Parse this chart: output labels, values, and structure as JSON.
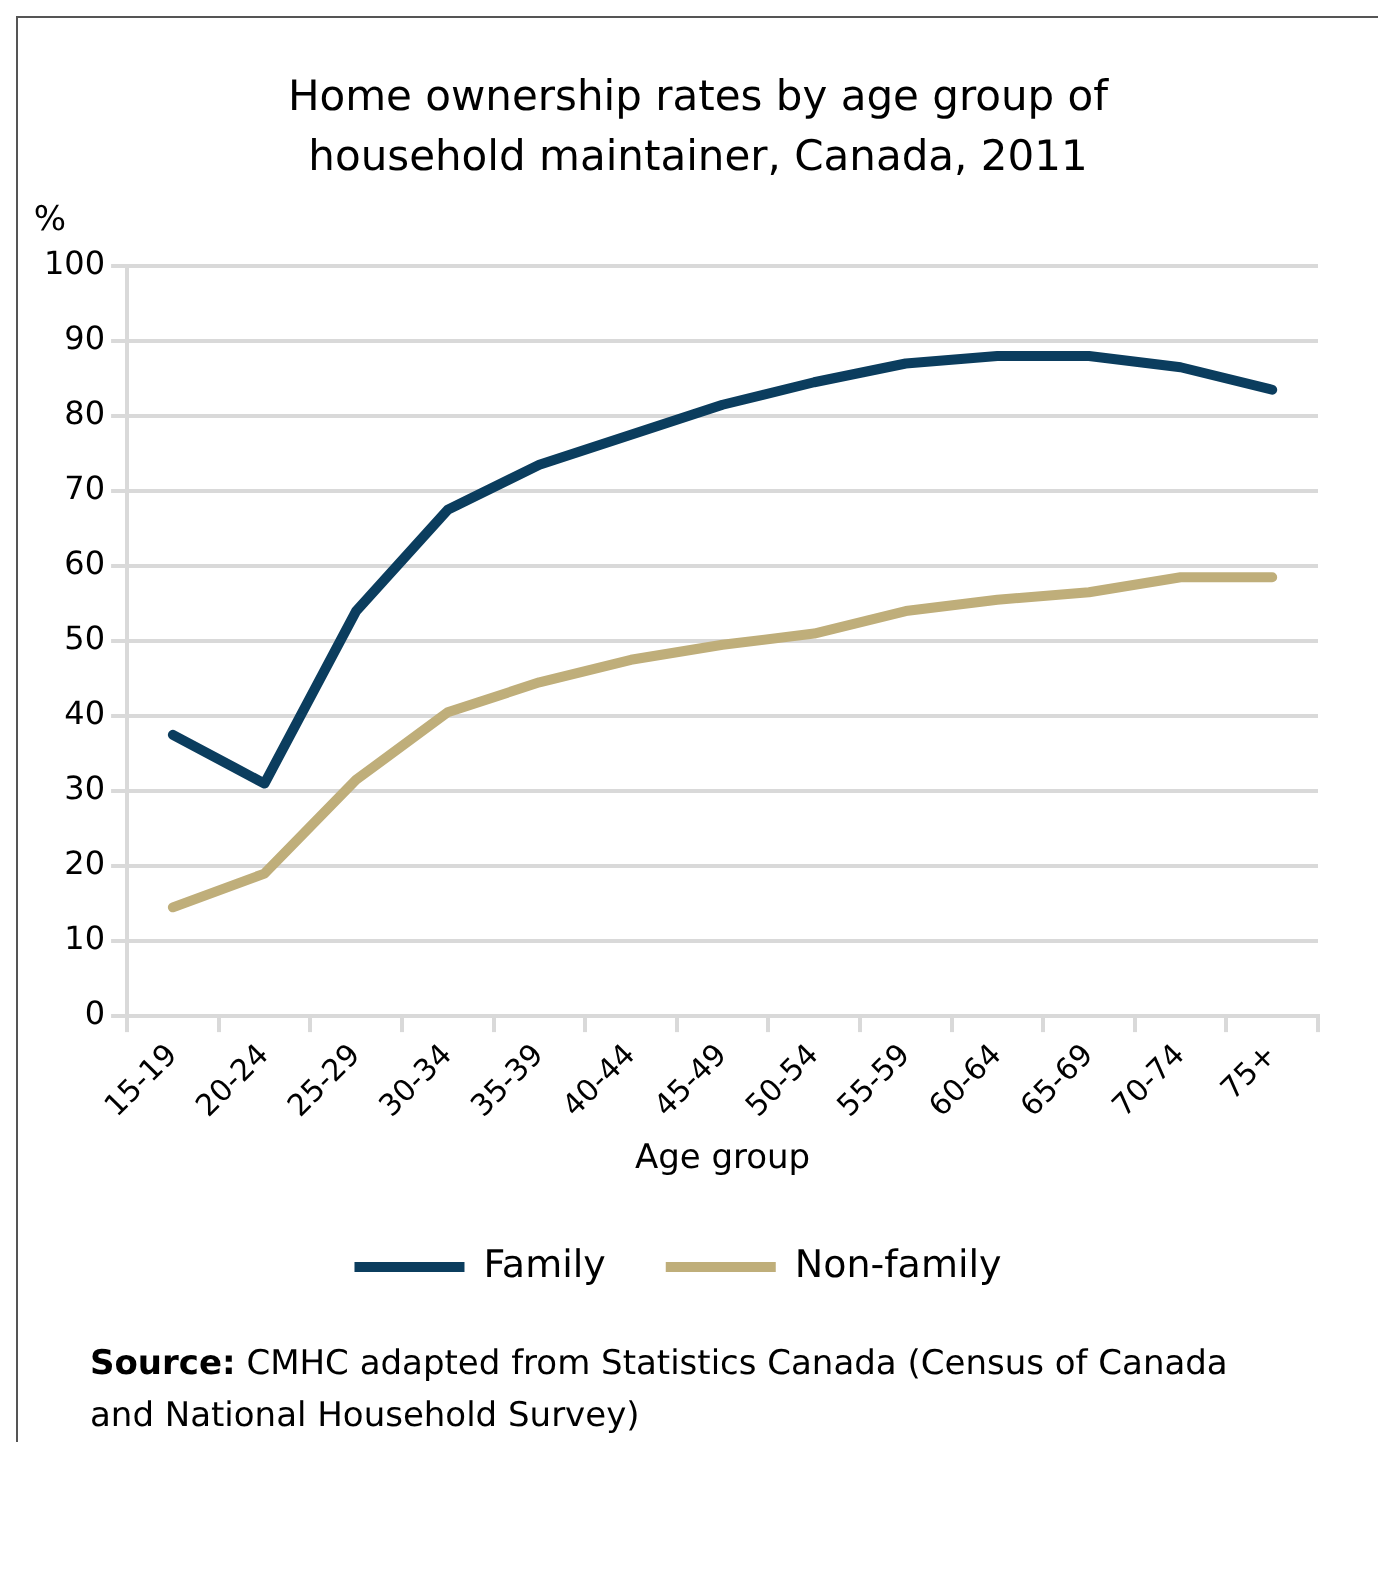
{
  "chart_data": {
    "type": "line",
    "title": "Home ownership rates by age group of household maintainer, Canada, 2011",
    "xlabel": "Age group",
    "ylabel": "%",
    "categories": [
      "15-19",
      "20-24",
      "25-29",
      "30-34",
      "35-39",
      "40-44",
      "45-49",
      "50-54",
      "55-59",
      "60-64",
      "65-69",
      "70-74",
      "75+"
    ],
    "series": [
      {
        "name": "Family",
        "color": "#0b3d5e",
        "values": [
          37.5,
          31,
          54,
          67.5,
          73.5,
          77.5,
          81.5,
          84.5,
          87,
          88,
          88,
          86.5,
          83.5
        ]
      },
      {
        "name": "Non-family",
        "color": "#bfae7a",
        "values": [
          14.5,
          19,
          31.5,
          40.5,
          44.5,
          47.5,
          49.5,
          51,
          54,
          55.5,
          56.5,
          58.5,
          58.5
        ]
      }
    ],
    "ylim": [
      0,
      100
    ],
    "yticks": [
      0,
      10,
      20,
      30,
      40,
      50,
      60,
      70,
      80,
      90,
      100
    ],
    "grid": "y",
    "legend": "bottom",
    "marker": "none",
    "line_style": "solid",
    "annotations": [
      "Source: CMHC adapted from Statistics Canada (Census of Canada and National Household Survey)"
    ]
  }
}
